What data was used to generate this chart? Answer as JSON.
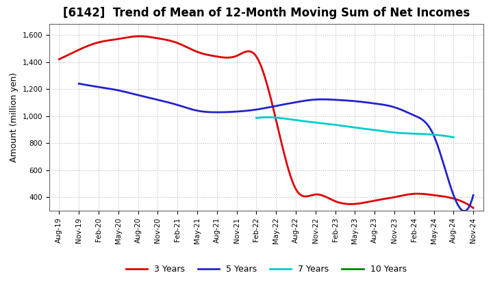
{
  "title": "[6142]  Trend of Mean of 12-Month Moving Sum of Net Incomes",
  "ylabel": "Amount (million yen)",
  "xlabel": "",
  "background_color": "#ffffff",
  "plot_bg_color": "#ffffff",
  "grid_color": "#aaaaaa",
  "ylim": [
    300,
    1680
  ],
  "yticks": [
    400,
    600,
    800,
    1000,
    1200,
    1400,
    1600
  ],
  "x_labels": [
    "Aug-19",
    "Nov-19",
    "Feb-20",
    "May-20",
    "Aug-20",
    "Nov-20",
    "Feb-21",
    "May-21",
    "Aug-21",
    "Nov-21",
    "Feb-22",
    "May-22",
    "Aug-22",
    "Nov-22",
    "Feb-23",
    "May-23",
    "Aug-23",
    "Nov-23",
    "Feb-24",
    "May-24",
    "Aug-24",
    "Nov-24"
  ],
  "series": {
    "3 Years": {
      "color": "#dd0000",
      "linewidth": 2.0,
      "data_x": [
        0,
        1,
        2,
        3,
        4,
        5,
        6,
        7,
        8,
        9,
        10,
        11,
        12,
        13,
        14,
        15,
        16,
        17,
        18,
        19,
        20,
        21
      ],
      "data_y": [
        1420,
        1490,
        1545,
        1570,
        1590,
        1575,
        1540,
        1475,
        1440,
        1445,
        1440,
        970,
        460,
        420,
        370,
        350,
        375,
        400,
        425,
        415,
        390,
        320
      ]
    },
    "5 Years": {
      "color": "#2222cc",
      "linewidth": 2.0,
      "data_x": [
        1,
        2,
        3,
        4,
        5,
        6,
        7,
        8,
        9,
        10,
        11,
        12,
        13,
        14,
        15,
        16,
        17,
        18,
        19,
        20,
        21
      ],
      "data_y": [
        1240,
        1215,
        1190,
        1155,
        1120,
        1082,
        1040,
        1028,
        1033,
        1048,
        1075,
        1102,
        1122,
        1120,
        1110,
        1093,
        1065,
        1005,
        855,
        415,
        415
      ]
    },
    "7 Years": {
      "color": "#00cccc",
      "linewidth": 2.0,
      "data_x": [
        10,
        11,
        12,
        13,
        14,
        15,
        16,
        17,
        18,
        19,
        20
      ],
      "data_y": [
        985,
        988,
        970,
        952,
        935,
        915,
        897,
        878,
        870,
        862,
        843
      ]
    },
    "10 Years": {
      "color": "#008800",
      "linewidth": 2.0,
      "data_x": [],
      "data_y": []
    }
  },
  "legend_entries": [
    "3 Years",
    "5 Years",
    "7 Years",
    "10 Years"
  ],
  "legend_colors": [
    "#dd0000",
    "#2222cc",
    "#00cccc",
    "#008800"
  ],
  "title_fontsize": 12,
  "tick_fontsize": 7.5,
  "label_fontsize": 9
}
